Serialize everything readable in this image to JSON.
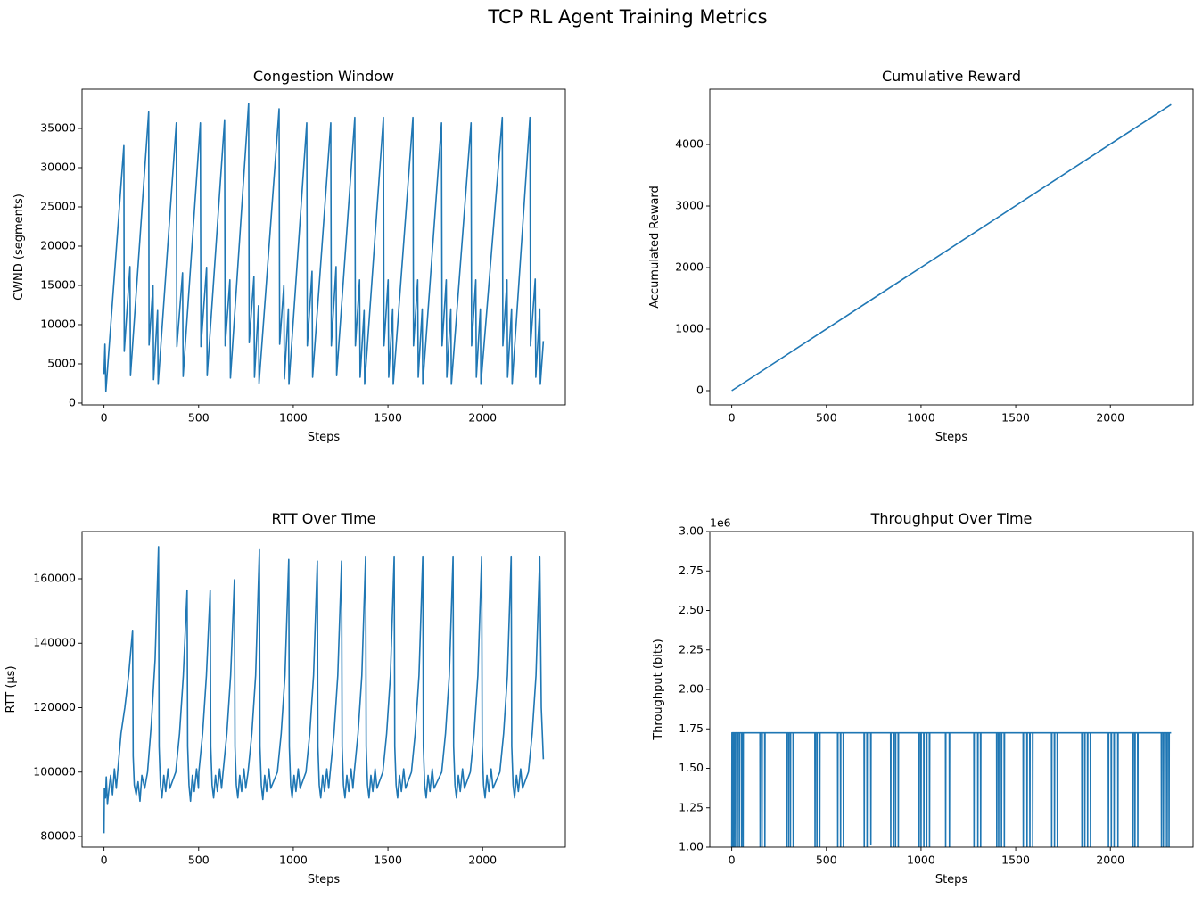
{
  "title": "TCP RL Agent Training Metrics",
  "chart_data": [
    {
      "type": "line",
      "title": "Congestion Window",
      "x_label": "Steps",
      "y_label": "CWND (segments)",
      "color": "#1f77b4",
      "xlim": [
        -116,
        2437
      ],
      "ylim": [
        -230,
        40000
      ],
      "xticks": [
        0,
        500,
        1000,
        1500,
        2000
      ],
      "yticks": [
        0,
        5000,
        10000,
        15000,
        20000,
        25000,
        30000,
        35000
      ],
      "x": [
        0,
        5,
        10,
        105,
        107,
        137,
        140,
        236,
        238,
        259,
        262,
        283,
        286,
        382,
        385,
        415,
        418,
        509,
        512,
        542,
        545,
        637,
        640,
        665,
        668,
        764,
        767,
        792,
        795,
        816,
        819,
        925,
        928,
        950,
        953,
        974,
        977,
        1071,
        1074,
        1099,
        1102,
        1198,
        1201,
        1226,
        1229,
        1325,
        1328,
        1350,
        1353,
        1374,
        1377,
        1476,
        1479,
        1501,
        1504,
        1525,
        1528,
        1632,
        1635,
        1657,
        1660,
        1681,
        1684,
        1783,
        1786,
        1808,
        1811,
        1832,
        1835,
        1939,
        1942,
        1964,
        1967,
        1988,
        1991,
        2104,
        2107,
        2129,
        2132,
        2153,
        2156,
        2250,
        2253,
        2278,
        2281,
        2302,
        2305,
        2321
      ],
      "values": [
        3700,
        7500,
        1500,
        32800,
        6600,
        17400,
        3500,
        37100,
        7400,
        15000,
        3000,
        11800,
        2400,
        35700,
        7200,
        16600,
        3400,
        35700,
        7200,
        17300,
        3500,
        36100,
        7300,
        15700,
        3200,
        38200,
        7700,
        16100,
        3300,
        12400,
        2500,
        37500,
        7500,
        15000,
        3100,
        12000,
        2400,
        35700,
        7300,
        16800,
        3300,
        35700,
        7300,
        17400,
        3500,
        36400,
        7300,
        15700,
        3300,
        11800,
        2400,
        36400,
        7300,
        15700,
        3300,
        12000,
        2400,
        36400,
        7300,
        15700,
        3300,
        12000,
        2400,
        35700,
        7300,
        15700,
        3300,
        12000,
        2400,
        35700,
        7300,
        15700,
        3300,
        12000,
        2400,
        36400,
        7300,
        15700,
        3300,
        12000,
        2400,
        36400,
        7300,
        15800,
        3300,
        12000,
        2400,
        7900
      ]
    },
    {
      "type": "line",
      "title": "Cumulative Reward",
      "x_label": "Steps",
      "y_label": "Accumulated Reward",
      "color": "#1f77b4",
      "xlim": [
        -116,
        2437
      ],
      "ylim": [
        -232,
        4899
      ],
      "xticks": [
        0,
        500,
        1000,
        1500,
        2000
      ],
      "yticks": [
        0,
        1000,
        2000,
        3000,
        4000
      ],
      "x": [
        0,
        2321
      ],
      "values": [
        0,
        4650
      ]
    },
    {
      "type": "line",
      "title": "RTT Over Time",
      "x_label": "Steps",
      "y_label": "RTT (µs)",
      "color": "#1f77b4",
      "xlim": [
        -116,
        2437
      ],
      "ylim": [
        76680,
        174670
      ],
      "xticks": [
        0,
        500,
        1000,
        1500,
        2000
      ],
      "yticks": [
        80000,
        100000,
        120000,
        140000,
        160000
      ],
      "x": [
        0,
        2,
        8,
        12,
        18,
        25,
        35,
        45,
        55,
        65,
        75,
        90,
        110,
        130,
        151,
        154,
        160,
        170,
        180,
        190,
        200,
        215,
        230,
        250,
        270,
        288,
        291,
        298,
        306,
        316,
        326,
        338,
        348,
        379,
        399,
        419,
        439,
        442,
        449,
        457,
        467,
        477,
        489,
        499,
        501,
        521,
        541,
        561,
        564,
        571,
        579,
        589,
        599,
        611,
        621,
        629,
        649,
        669,
        689,
        692,
        699,
        707,
        717,
        727,
        739,
        749,
        761,
        781,
        801,
        821,
        824,
        831,
        839,
        849,
        859,
        871,
        881,
        916,
        936,
        956,
        976,
        979,
        986,
        994,
        1004,
        1014,
        1026,
        1036,
        1067,
        1087,
        1107,
        1127,
        1130,
        1137,
        1145,
        1155,
        1165,
        1177,
        1187,
        1195,
        1215,
        1235,
        1255,
        1258,
        1265,
        1273,
        1283,
        1293,
        1305,
        1315,
        1322,
        1342,
        1362,
        1382,
        1385,
        1392,
        1400,
        1410,
        1420,
        1432,
        1442,
        1473,
        1493,
        1513,
        1533,
        1536,
        1543,
        1551,
        1561,
        1571,
        1583,
        1593,
        1624,
        1644,
        1664,
        1684,
        1687,
        1694,
        1702,
        1712,
        1722,
        1734,
        1744,
        1784,
        1804,
        1824,
        1844,
        1847,
        1854,
        1862,
        1872,
        1882,
        1894,
        1904,
        1935,
        1955,
        1975,
        1995,
        1998,
        2005,
        2013,
        2023,
        2033,
        2045,
        2055,
        2091,
        2111,
        2131,
        2151,
        2154,
        2161,
        2169,
        2179,
        2189,
        2201,
        2211,
        2242,
        2262,
        2282,
        2302,
        2305,
        2310,
        2321
      ],
      "values": [
        81000,
        95000,
        92000,
        98500,
        90000,
        94000,
        99000,
        93000,
        101000,
        95000,
        102000,
        112000,
        120000,
        130000,
        144000,
        105000,
        96000,
        93000,
        97000,
        91000,
        99000,
        95000,
        100000,
        115000,
        135000,
        170000,
        108000,
        96000,
        92000,
        99000,
        94000,
        101000,
        95000,
        100000,
        112000,
        130000,
        156500,
        108000,
        96000,
        91000,
        99000,
        94000,
        101000,
        95000,
        100000,
        112000,
        130000,
        156500,
        108000,
        96000,
        92000,
        99000,
        94000,
        101000,
        95000,
        100000,
        112000,
        130000,
        159700,
        108000,
        96000,
        92000,
        99000,
        94000,
        101000,
        95000,
        100000,
        112000,
        130000,
        169000,
        108000,
        96000,
        91500,
        99000,
        94000,
        101000,
        95000,
        100000,
        112000,
        130000,
        166000,
        108000,
        96000,
        92000,
        99000,
        94000,
        101000,
        95000,
        100000,
        112000,
        130000,
        165500,
        108000,
        96000,
        92000,
        99000,
        94000,
        101000,
        95000,
        100000,
        112000,
        130000,
        165500,
        108000,
        96000,
        92000,
        99000,
        94000,
        101000,
        95000,
        100000,
        112000,
        130000,
        167000,
        108000,
        96000,
        92000,
        99000,
        94000,
        101000,
        95000,
        100000,
        112000,
        130000,
        167000,
        108000,
        96000,
        92000,
        99000,
        94000,
        101000,
        95000,
        100000,
        112000,
        130000,
        167000,
        108000,
        96000,
        92000,
        99000,
        94000,
        101000,
        95000,
        100000,
        112000,
        130000,
        167000,
        108000,
        96000,
        92000,
        99000,
        94000,
        101000,
        95000,
        100000,
        112000,
        130000,
        167000,
        108000,
        96000,
        92000,
        99000,
        94000,
        101000,
        95000,
        100000,
        112000,
        130000,
        167000,
        108000,
        96000,
        92000,
        99000,
        94000,
        101000,
        95000,
        100000,
        112000,
        130000,
        167000,
        150000,
        120000,
        104000
      ]
    },
    {
      "type": "line",
      "title": "Throughput Over Time",
      "x_label": "Steps",
      "y_label": "Throughput (bits)",
      "y_offset_label": "1e6",
      "color": "#1f77b4",
      "xlim": [
        -116,
        2437
      ],
      "ylim": [
        1000000,
        3000000
      ],
      "xticks": [
        0,
        500,
        1000,
        1500,
        2000
      ],
      "yticks": [
        {
          "value": 1000000,
          "label": "1.00"
        },
        {
          "value": 1250000,
          "label": "1.25"
        },
        {
          "value": 1500000,
          "label": "1.50"
        },
        {
          "value": 1750000,
          "label": "1.75"
        },
        {
          "value": 2000000,
          "label": "2.00"
        },
        {
          "value": 2250000,
          "label": "2.25"
        },
        {
          "value": 2500000,
          "label": "2.50"
        },
        {
          "value": 2750000,
          "label": "2.75"
        },
        {
          "value": 3000000,
          "label": "3.00"
        }
      ],
      "x": [
        0,
        1,
        4,
        5,
        6,
        11,
        12,
        13,
        19,
        20,
        21,
        29,
        30,
        31,
        39,
        40,
        41,
        51,
        52,
        53,
        59,
        60,
        61,
        149,
        150,
        151,
        159,
        160,
        161,
        174,
        175,
        176,
        289,
        290,
        291,
        299,
        300,
        301,
        309,
        310,
        311,
        324,
        325,
        326,
        439,
        440,
        441,
        449,
        450,
        451,
        464,
        465,
        466,
        559,
        560,
        561,
        574,
        575,
        576,
        589,
        590,
        591,
        699,
        700,
        701,
        714,
        715,
        716,
        734,
        735,
        736,
        839,
        840,
        841,
        854,
        855,
        856,
        864,
        865,
        866,
        879,
        880,
        881,
        989,
        990,
        991,
        999,
        1000,
        1001,
        1014,
        1015,
        1016,
        1029,
        1030,
        1031,
        1044,
        1045,
        1046,
        1129,
        1130,
        1131,
        1149,
        1150,
        1151,
        1279,
        1280,
        1281,
        1299,
        1300,
        1301,
        1314,
        1315,
        1316,
        1399,
        1400,
        1401,
        1409,
        1410,
        1411,
        1424,
        1425,
        1426,
        1439,
        1440,
        1441,
        1539,
        1540,
        1541,
        1559,
        1560,
        1561,
        1574,
        1575,
        1576,
        1589,
        1590,
        1591,
        1689,
        1690,
        1691,
        1704,
        1705,
        1706,
        1719,
        1720,
        1721,
        1849,
        1850,
        1851,
        1864,
        1865,
        1866,
        1879,
        1880,
        1881,
        1894,
        1895,
        1896,
        1989,
        1990,
        1991,
        2004,
        2005,
        2006,
        2019,
        2020,
        2021,
        2039,
        2040,
        2041,
        2119,
        2120,
        2121,
        2129,
        2130,
        2131,
        2144,
        2145,
        2146,
        2269,
        2270,
        2271,
        2279,
        2280,
        2281,
        2289,
        2290,
        2291,
        2299,
        2300,
        2301,
        2309,
        2310,
        2311,
        2321
      ],
      "values": [
        1000000,
        1725000,
        1725000,
        1000000,
        1725000,
        1725000,
        1000000,
        1725000,
        1725000,
        1000000,
        1725000,
        1725000,
        1000000,
        1725000,
        1725000,
        1000000,
        1725000,
        1725000,
        1000000,
        1725000,
        1725000,
        1000000,
        1725000,
        1725000,
        1000000,
        1725000,
        1725000,
        1000000,
        1725000,
        1725000,
        1000000,
        1725000,
        1725000,
        1000000,
        1725000,
        1725000,
        1000000,
        1725000,
        1725000,
        1000000,
        1725000,
        1725000,
        1000000,
        1725000,
        1725000,
        1000000,
        1725000,
        1725000,
        1000000,
        1725000,
        1725000,
        1000000,
        1725000,
        1725000,
        1000000,
        1725000,
        1725000,
        1000000,
        1725000,
        1725000,
        1000000,
        1725000,
        1725000,
        1000000,
        1725000,
        1725000,
        1000000,
        1725000,
        1725000,
        1020000,
        1725000,
        1725000,
        1000000,
        1725000,
        1725000,
        1000000,
        1725000,
        1725000,
        1000000,
        1725000,
        1725000,
        1000000,
        1725000,
        1725000,
        1000000,
        1725000,
        1725000,
        1000000,
        1725000,
        1725000,
        1000000,
        1725000,
        1725000,
        1000000,
        1725000,
        1725000,
        1000000,
        1725000,
        1725000,
        1000000,
        1725000,
        1725000,
        1000000,
        1725000,
        1725000,
        1000000,
        1725000,
        1725000,
        1000000,
        1725000,
        1725000,
        1000000,
        1725000,
        1725000,
        1000000,
        1725000,
        1725000,
        1000000,
        1725000,
        1725000,
        1000000,
        1725000,
        1725000,
        1000000,
        1725000,
        1725000,
        1000000,
        1725000,
        1725000,
        1000000,
        1725000,
        1725000,
        1000000,
        1725000,
        1725000,
        1000000,
        1725000,
        1725000,
        1000000,
        1725000,
        1725000,
        1000000,
        1725000,
        1725000,
        1000000,
        1725000,
        1725000,
        1000000,
        1725000,
        1725000,
        1000000,
        1725000,
        1725000,
        1000000,
        1725000,
        1725000,
        1000000,
        1725000,
        1725000,
        1000000,
        1725000,
        1725000,
        1000000,
        1725000,
        1725000,
        1000000,
        1725000,
        1725000,
        1000000,
        1725000,
        1725000,
        1000000,
        1725000,
        1725000,
        1000000,
        1725000,
        1725000,
        1000000,
        1725000,
        1725000,
        1000000,
        1725000,
        1725000,
        1000000,
        1725000,
        1725000,
        1000000,
        1725000,
        1725000,
        1000000,
        1725000,
        1725000,
        1000000,
        1725000,
        1725000
      ]
    }
  ]
}
